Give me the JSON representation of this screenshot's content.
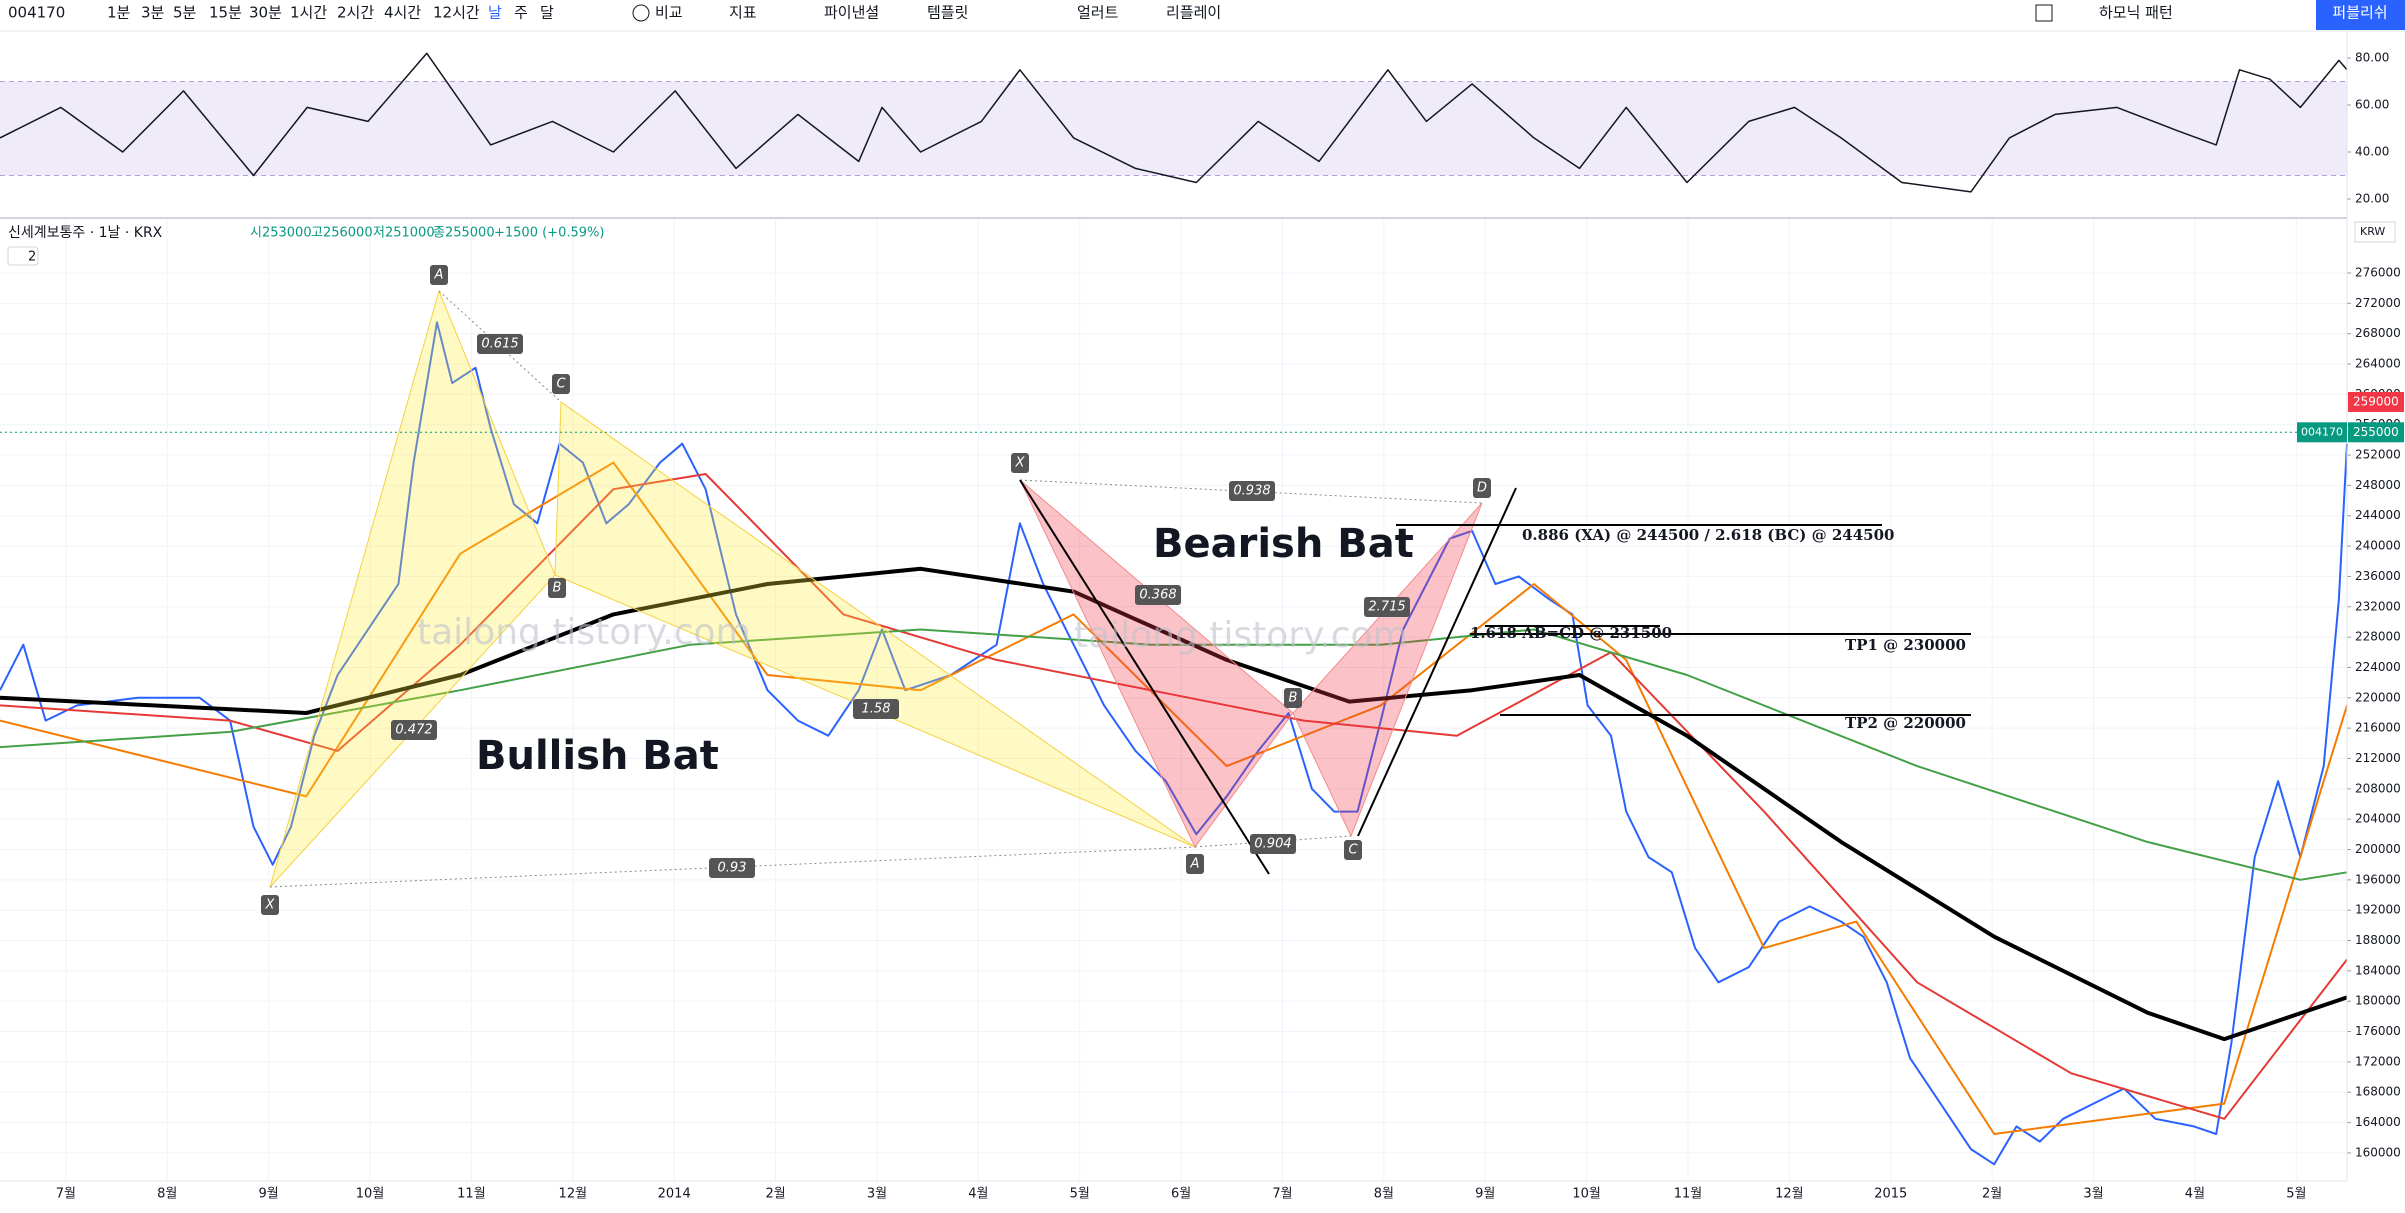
{
  "toolbar": {
    "symbol": "004170",
    "intervals": [
      "1분",
      "3분",
      "5분",
      "15분",
      "30분",
      "1시간",
      "2시간",
      "4시간",
      "12시간",
      "날",
      "주",
      "달"
    ],
    "compare": "비교",
    "indicators": "지표",
    "financials": "파이낸셜",
    "templates": "템플릿",
    "alert": "얼러트",
    "replay": "리플레이",
    "harmonic": "하모닉 패턴",
    "publish": "퍼블리쉬"
  },
  "legend": {
    "title": "신세계보통주 · 1날 · KRX",
    "open": "시253000",
    "high": "고256000",
    "low": "저251000",
    "close": "종255000",
    "change": "+1500 (+0.59%)",
    "collapse": "2",
    "currency": "KRW"
  },
  "annotations": {
    "watermark": "tailong.tistory.com",
    "bullish": "Bullish Bat",
    "bearish": "Bearish Bat",
    "target": "0.886 (XA) @ 244500 / 2.618 (BC) @ 244500",
    "abcd": "1.618 AB=CD @ 231500",
    "tp1": "TP1 @ 230000",
    "tp2": "TP2 @ 220000",
    "bull_points": [
      "X",
      "A",
      "B",
      "C"
    ],
    "bull_ratios": [
      "0.615",
      "0.472",
      "1.58",
      "0.93"
    ],
    "bear_points": [
      "X",
      "A",
      "B",
      "C",
      "D"
    ],
    "bear_ratios": [
      "0.368",
      "0.938",
      "2.715",
      "0.904"
    ]
  },
  "chart_data": [
    {
      "type": "line",
      "xlim": [
        -0.65,
        22.5
      ],
      "ylim": [
        11.9,
        91.5
      ],
      "yticks": [
        {
          "value": 80,
          "label": "80.00"
        },
        {
          "value": 60,
          "label": "60.00"
        },
        {
          "value": 40,
          "label": "40.00"
        },
        {
          "value": 20,
          "label": "20.00"
        }
      ],
      "band": [
        30,
        70
      ],
      "series": [
        {
          "color": "#131722",
          "x": [
            -0.65,
            -0.05,
            0.56,
            1.16,
            1.85,
            2.38,
            2.98,
            3.56,
            4.19,
            4.8,
            5.4,
            6.01,
            6.61,
            7.22,
            7.82,
            8.05,
            8.43,
            9.03,
            9.41,
            9.94,
            10.55,
            11.15,
            11.76,
            12.36,
            13.04,
            13.42,
            13.87,
            14.48,
            14.93,
            15.39,
            15.99,
            16.6,
            17.05,
            17.51,
            18.11,
            18.79,
            19.17,
            19.62,
            20.23,
            20.83,
            21.21,
            21.44,
            21.74,
            22.04,
            22.42,
            22.5
          ],
          "values": [
            46,
            59,
            40,
            66,
            30,
            59,
            53,
            82,
            43,
            53,
            40,
            66,
            33,
            56,
            36,
            59,
            40,
            53,
            75,
            46,
            33,
            27,
            53,
            36,
            75,
            53,
            69,
            46,
            33,
            59,
            27,
            53,
            59,
            46,
            27,
            23,
            46,
            56,
            59,
            49,
            43,
            75,
            71,
            59,
            79,
            75
          ]
        }
      ]
    },
    {
      "type": "line",
      "grid": true,
      "xlim": [
        -0.65,
        22.5
      ],
      "ylim": [
        156300,
        283250
      ],
      "xticks": [
        {
          "value": 0,
          "label": "7월"
        },
        {
          "value": 1,
          "label": "8월"
        },
        {
          "value": 2,
          "label": "9월"
        },
        {
          "value": 3,
          "label": "10월"
        },
        {
          "value": 4,
          "label": "11월"
        },
        {
          "value": 5,
          "label": "12월"
        },
        {
          "value": 6,
          "label": "2014"
        },
        {
          "value": 7,
          "label": "2월"
        },
        {
          "value": 8,
          "label": "3월"
        },
        {
          "value": 9,
          "label": "4월"
        },
        {
          "value": 10,
          "label": "5월"
        },
        {
          "value": 11,
          "label": "6월"
        },
        {
          "value": 12,
          "label": "7월"
        },
        {
          "value": 13,
          "label": "8월"
        },
        {
          "value": 14,
          "label": "9월"
        },
        {
          "value": 15,
          "label": "10월"
        },
        {
          "value": 16,
          "label": "11월"
        },
        {
          "value": 17,
          "label": "12월"
        },
        {
          "value": 18,
          "label": "2015"
        },
        {
          "value": 19,
          "label": "2월"
        },
        {
          "value": 20,
          "label": "3월"
        },
        {
          "value": 21,
          "label": "4월"
        },
        {
          "value": 22,
          "label": "5월"
        }
      ],
      "yticks": [
        160000,
        164000,
        168000,
        172000,
        176000,
        180000,
        184000,
        188000,
        192000,
        196000,
        200000,
        204000,
        208000,
        212000,
        216000,
        220000,
        224000,
        228000,
        232000,
        236000,
        240000,
        244000,
        248000,
        252000,
        256000,
        260000,
        264000,
        268000,
        272000,
        276000
      ],
      "price_marks": [
        {
          "value": 259000,
          "color": "#f23645"
        },
        {
          "label": "004170",
          "value": 255000,
          "color": "#089981"
        }
      ],
      "series": [
        {
          "color": "#2962ff",
          "width": 2,
          "x": [
            -0.65,
            -0.42,
            -0.2,
            0.11,
            0.71,
            1.32,
            1.62,
            1.85,
            2.04,
            2.22,
            2.45,
            2.68,
            2.98,
            3.28,
            3.43,
            3.66,
            3.81,
            4.04,
            4.19,
            4.42,
            4.65,
            4.87,
            5.1,
            5.33,
            5.55,
            5.86,
            6.08,
            6.31,
            6.61,
            6.92,
            7.22,
            7.52,
            7.82,
            8.05,
            8.28,
            8.73,
            9.18,
            9.41,
            9.64,
            9.94,
            10.24,
            10.55,
            10.85,
            11.15,
            11.45,
            11.76,
            12.06,
            12.29,
            12.51,
            12.74,
            12.97,
            13.19,
            13.65,
            13.87,
            14.1,
            14.33,
            14.63,
            14.86,
            15.01,
            15.24,
            15.39,
            15.61,
            15.84,
            16.07,
            16.3,
            16.6,
            16.9,
            17.2,
            17.51,
            17.73,
            17.96,
            18.19,
            18.49,
            18.79,
            19.02,
            19.24,
            19.47,
            19.7,
            20,
            20.3,
            20.61,
            20.99,
            21.21,
            21.36,
            21.59,
            21.82,
            22.04,
            22.27,
            22.42,
            22.5
          ],
          "values": [
            221000,
            227000,
            217000,
            219000,
            220000,
            220000,
            217000,
            203000,
            198000,
            203000,
            215000,
            223000,
            229000,
            235000,
            251000,
            269500,
            261500,
            263500,
            255500,
            245500,
            243000,
            253500,
            251000,
            243000,
            245500,
            251000,
            253500,
            247500,
            231000,
            221000,
            217000,
            215000,
            221000,
            229000,
            221000,
            223000,
            227000,
            243000,
            235000,
            227000,
            219000,
            213000,
            209000,
            202000,
            207000,
            213000,
            218000,
            208000,
            205000,
            205000,
            217000,
            229000,
            241000,
            242000,
            235000,
            236000,
            233000,
            231000,
            219000,
            215000,
            205000,
            199000,
            197000,
            187000,
            182500,
            184500,
            190500,
            192500,
            190500,
            188500,
            182500,
            172500,
            166500,
            160500,
            158500,
            163500,
            161500,
            164500,
            166500,
            168500,
            164500,
            163500,
            162500,
            174500,
            199000,
            209000,
            199000,
            211000,
            233000,
            253500
          ]
        },
        {
          "color": "#f57c00",
          "width": 2,
          "x": [
            -0.65,
            2.37,
            3.89,
            5.4,
            6.92,
            8.43,
            9.94,
            11.45,
            12.97,
            14.48,
            15.39,
            16.75,
            17.66,
            19.02,
            21.29,
            22.5
          ],
          "values": [
            217000,
            207000,
            239000,
            251000,
            223000,
            221000,
            231000,
            211000,
            219000,
            235000,
            225000,
            187000,
            190500,
            162500,
            166500,
            219000
          ]
        },
        {
          "color": "#e53935",
          "width": 2,
          "x": [
            -0.65,
            1.62,
            2.68,
            3.89,
            5.4,
            6.31,
            7.67,
            9.18,
            10.7,
            12.21,
            13.72,
            15.24,
            16.75,
            18.26,
            19.78,
            21.29,
            22.5
          ],
          "values": [
            219000,
            217000,
            213000,
            227000,
            247500,
            249500,
            231000,
            225000,
            221000,
            217000,
            215000,
            226000,
            205000,
            182500,
            170500,
            164500,
            185500
          ]
        },
        {
          "color": "#43a047",
          "width": 2,
          "x": [
            -0.65,
            1.62,
            3.89,
            6.16,
            8.43,
            10.7,
            12.97,
            14.48,
            15.99,
            18.26,
            20.53,
            22.04,
            22.5
          ],
          "values": [
            213500,
            215500,
            221000,
            227000,
            229000,
            227000,
            227000,
            229000,
            223000,
            211000,
            201000,
            196000,
            197000
          ]
        },
        {
          "color": "#000000",
          "width": 4,
          "x": [
            -0.65,
            0.86,
            2.37,
            3.89,
            5.4,
            6.92,
            8.43,
            9.94,
            11.45,
            12.66,
            13.87,
            14.93,
            15.99,
            17.51,
            19.02,
            20.53,
            21.29,
            22.5
          ],
          "values": [
            220000,
            219000,
            218000,
            223000,
            231000,
            235000,
            237000,
            234000,
            225000,
            219500,
            221000,
            223000,
            215000,
            201000,
            188500,
            178500,
            175000,
            180500
          ]
        }
      ]
    }
  ]
}
